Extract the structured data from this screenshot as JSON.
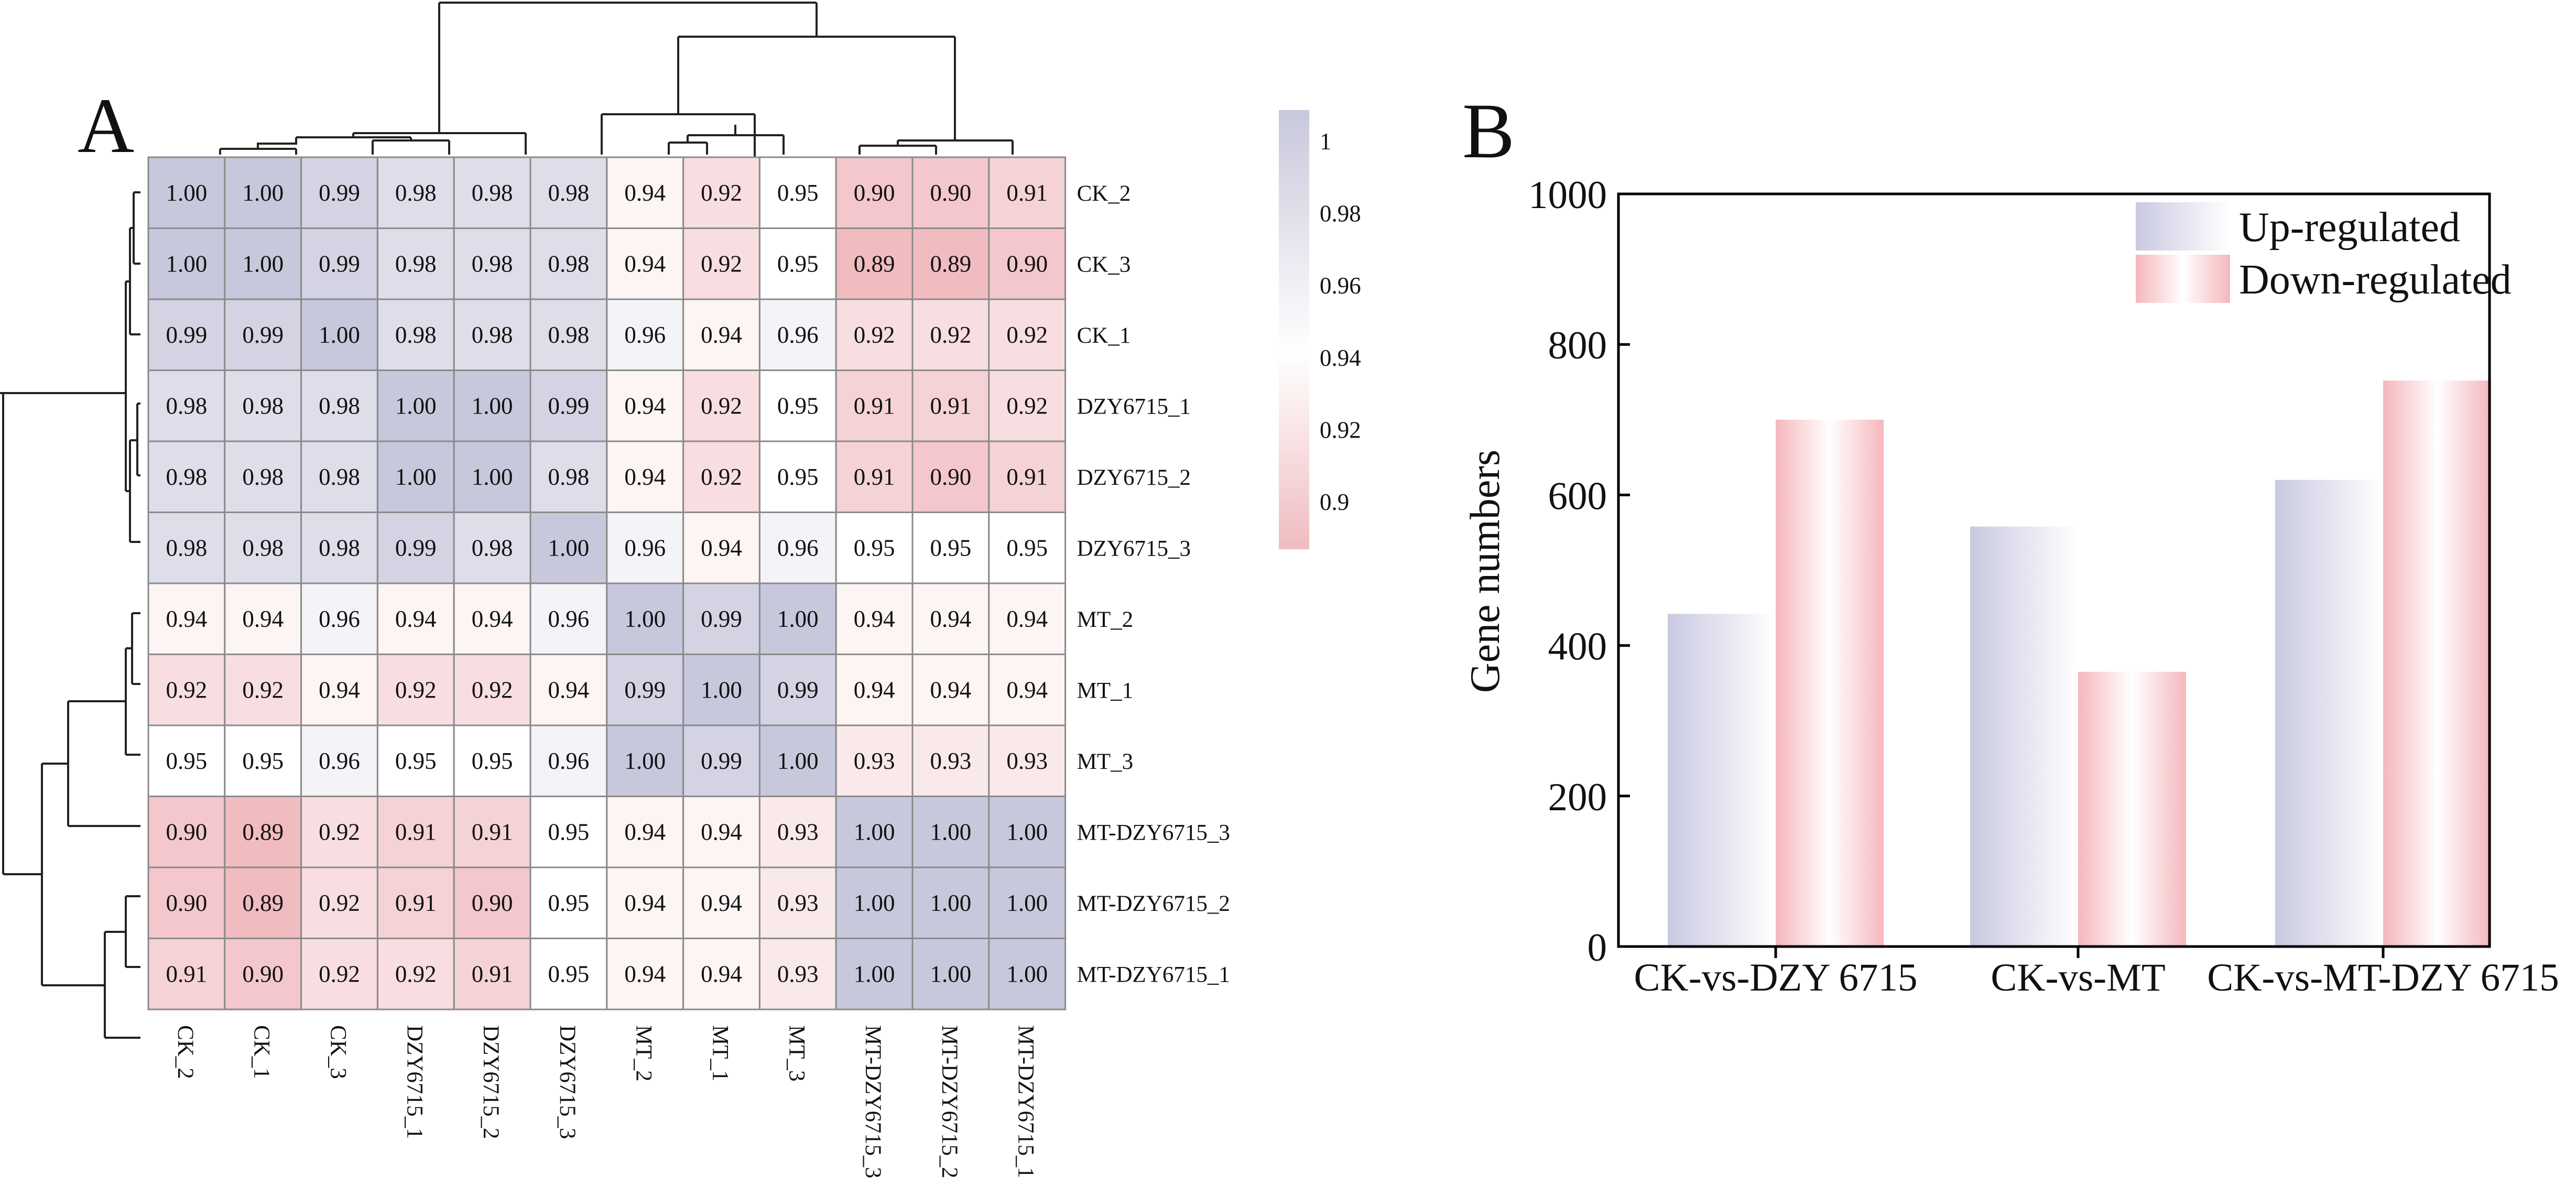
{
  "panel_a": {
    "label": "A",
    "chart_data": {
      "type": "heatmap",
      "title": "",
      "rows": [
        "CK_2",
        "CK_3",
        "CK_1",
        "DZY6715_1",
        "DZY6715_2",
        "DZY6715_3",
        "MT_2",
        "MT_1",
        "MT_3",
        "MT-DZY6715_3",
        "MT-DZY6715_2",
        "MT-DZY6715_1"
      ],
      "columns": [
        "CK_2",
        "CK_1",
        "CK_3",
        "DZY6715_1",
        "DZY6715_2",
        "DZY6715_3",
        "MT_2",
        "MT_1",
        "MT_3",
        "MT-DZY6715_3",
        "MT-DZY6715_2",
        "MT-DZY6715_1"
      ],
      "values": [
        [
          "1.00",
          "1.00",
          "0.99",
          "0.98",
          "0.98",
          "0.98",
          "0.94",
          "0.92",
          "0.95",
          "0.90",
          "0.90",
          "0.91"
        ],
        [
          "1.00",
          "1.00",
          "0.99",
          "0.98",
          "0.98",
          "0.98",
          "0.94",
          "0.92",
          "0.95",
          "0.89",
          "0.89",
          "0.90"
        ],
        [
          "0.99",
          "0.99",
          "1.00",
          "0.98",
          "0.98",
          "0.98",
          "0.96",
          "0.94",
          "0.96",
          "0.92",
          "0.92",
          "0.92"
        ],
        [
          "0.98",
          "0.98",
          "0.98",
          "1.00",
          "1.00",
          "0.99",
          "0.94",
          "0.92",
          "0.95",
          "0.91",
          "0.91",
          "0.92"
        ],
        [
          "0.98",
          "0.98",
          "0.98",
          "1.00",
          "1.00",
          "0.98",
          "0.94",
          "0.92",
          "0.95",
          "0.91",
          "0.90",
          "0.91"
        ],
        [
          "0.98",
          "0.98",
          "0.98",
          "0.99",
          "0.98",
          "1.00",
          "0.96",
          "0.94",
          "0.96",
          "0.95",
          "0.95",
          "0.95"
        ],
        [
          "0.94",
          "0.94",
          "0.96",
          "0.94",
          "0.94",
          "0.96",
          "1.00",
          "0.99",
          "1.00",
          "0.94",
          "0.94",
          "0.94"
        ],
        [
          "0.92",
          "0.92",
          "0.94",
          "0.92",
          "0.92",
          "0.94",
          "0.99",
          "1.00",
          "0.99",
          "0.94",
          "0.94",
          "0.94"
        ],
        [
          "0.95",
          "0.95",
          "0.96",
          "0.95",
          "0.95",
          "0.96",
          "1.00",
          "0.99",
          "1.00",
          "0.93",
          "0.93",
          "0.93"
        ],
        [
          "0.90",
          "0.89",
          "0.92",
          "0.91",
          "0.91",
          "0.95",
          "0.94",
          "0.94",
          "0.93",
          "1.00",
          "1.00",
          "1.00"
        ],
        [
          "0.90",
          "0.89",
          "0.92",
          "0.91",
          "0.90",
          "0.95",
          "0.94",
          "0.94",
          "0.93",
          "1.00",
          "1.00",
          "1.00"
        ],
        [
          "0.91",
          "0.90",
          "0.92",
          "0.92",
          "0.91",
          "0.95",
          "0.94",
          "0.94",
          "0.93",
          "1.00",
          "1.00",
          "1.00"
        ]
      ],
      "color_scale": {
        "min": 0.89,
        "max": 1.0,
        "mid": 0.95,
        "low_color": "#f0bcc0",
        "mid_color": "#ffffff",
        "high_color": "#c8c8dc",
        "ticks": [
          "1",
          "0.98",
          "0.96",
          "0.94",
          "0.92",
          "0.9"
        ]
      }
    }
  },
  "panel_b": {
    "label": "B",
    "chart_data": {
      "type": "bar",
      "title": "",
      "xlabel": "",
      "ylabel": "Gene numbers",
      "ylim": [
        0,
        1000
      ],
      "yticks": [
        "0",
        "200",
        "400",
        "600",
        "800",
        "1000"
      ],
      "categories": [
        "CK-vs-DZY 6715",
        "CK-vs-MT",
        "CK-vs-MT-DZY 6715"
      ],
      "series": [
        {
          "name": "Up-regulated",
          "values": [
            442,
            558,
            620
          ],
          "color": "#c9c9e1"
        },
        {
          "name": "Down-regulated",
          "values": [
            700,
            365,
            752
          ],
          "color": "#f5b7bc"
        }
      ],
      "legend_position": "top-right"
    }
  }
}
